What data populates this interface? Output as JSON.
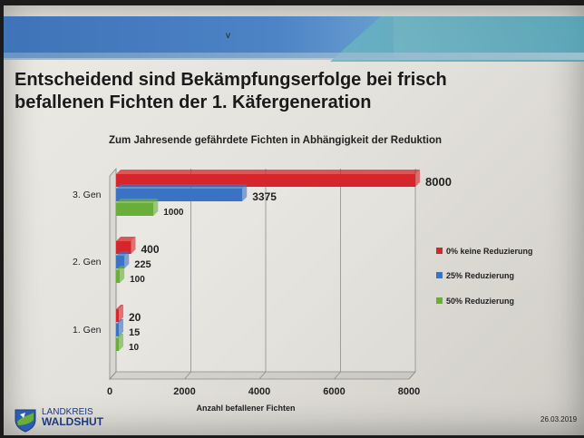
{
  "slide": {
    "title_line1": "Entscheidend sind Bekämpfungserfolge bei frisch",
    "title_line2": "befallenen Fichten der 1. Käfergeneration",
    "cursor_mark": "v",
    "date": "26.03.2019",
    "logo_line1": "LANDKREIS",
    "logo_line2": "WALDSHUT",
    "colors": {
      "red": "#d6262b",
      "blue": "#3a72c4",
      "green": "#6aae3a",
      "band": "#4c84c6"
    }
  },
  "chart_data": {
    "type": "bar",
    "orientation": "horizontal",
    "title": "Zum Jahresende gefährdete Fichten in Abhängigkeit der Reduktion",
    "xlabel": "Anzahl befallener Fichten",
    "categories": [
      "3. Gen",
      "2. Gen",
      "1. Gen"
    ],
    "xlim": [
      0,
      8000
    ],
    "xticks": [
      "0",
      "2000",
      "4000",
      "6000",
      "8000"
    ],
    "series": [
      {
        "name": "0% keine Reduzierung",
        "color": "#d6262b",
        "values": [
          8000,
          400,
          20
        ],
        "labels": [
          "8000",
          "400",
          "20"
        ]
      },
      {
        "name": "25% Reduzierung",
        "color": "#3a72c4",
        "values": [
          3375,
          225,
          15
        ],
        "labels": [
          "3375",
          "225",
          "15"
        ]
      },
      {
        "name": "50% Reduzierung",
        "color": "#6aae3a",
        "values": [
          1000,
          100,
          10
        ],
        "labels": [
          "1000",
          "100",
          "10"
        ]
      }
    ],
    "legend": "right",
    "grid": true
  }
}
